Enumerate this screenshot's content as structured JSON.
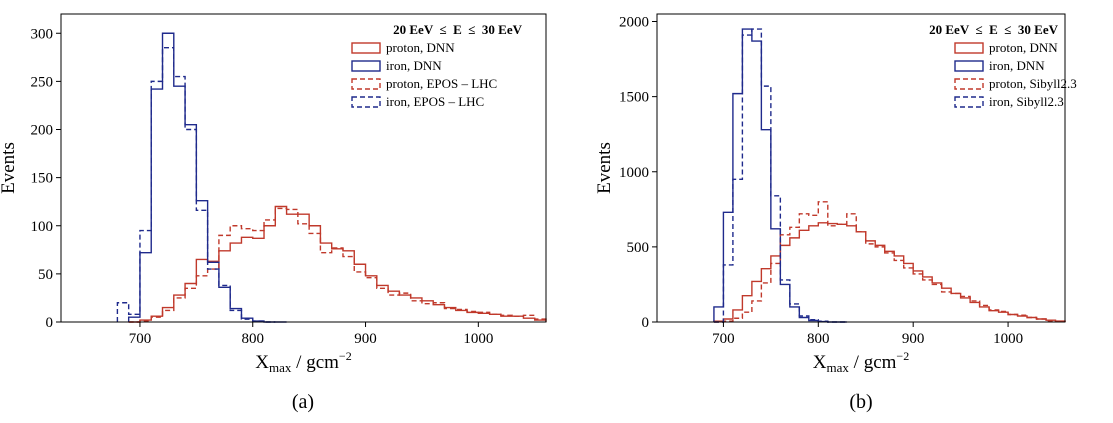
{
  "chart_data": [
    {
      "type": "histogram",
      "panel": "(a)",
      "energy_label": "20 EeV  ≤  E  ≤  30 EeV",
      "xlabel": "X",
      "xlabel_sub": "max",
      "xlabel_unit": " / gcm",
      "xlabel_sup": "−2",
      "ylabel": "Events",
      "xlim": [
        630,
        1060
      ],
      "ylim": [
        0,
        320
      ],
      "xticks": [
        700,
        800,
        900,
        1000
      ],
      "yticks": [
        0,
        50,
        100,
        150,
        200,
        250,
        300
      ],
      "bin_width": 10,
      "series": [
        {
          "name": "proton, DNN",
          "color": "#c0392b",
          "dash": "solid",
          "bin_start": 690,
          "values": [
            0,
            2,
            6,
            15,
            28,
            40,
            65,
            63,
            74,
            82,
            88,
            87,
            100,
            120,
            112,
            112,
            100,
            82,
            76,
            74,
            60,
            48,
            38,
            32,
            28,
            25,
            22,
            18,
            15,
            12,
            10,
            9,
            8,
            6,
            6,
            4,
            2
          ]
        },
        {
          "name": "iron, DNN",
          "color": "#1f2a8c",
          "dash": "solid",
          "bin_start": 690,
          "values": [
            5,
            72,
            242,
            300,
            245,
            205,
            126,
            62,
            36,
            14,
            4,
            1,
            0,
            0
          ]
        },
        {
          "name": "proton, EPOS – LHC",
          "color": "#c0392b",
          "dash": "dashed",
          "bin_start": 690,
          "values": [
            0,
            1,
            5,
            12,
            25,
            35,
            48,
            55,
            90,
            100,
            97,
            95,
            106,
            118,
            117,
            102,
            92,
            72,
            77,
            68,
            52,
            46,
            35,
            28,
            30,
            22,
            19,
            20,
            14,
            13,
            11,
            10,
            8,
            7,
            6,
            7,
            3
          ]
        },
        {
          "name": "iron, EPOS – LHC",
          "color": "#1f2a8c",
          "dash": "dashed",
          "bin_start": 680,
          "values": [
            20,
            8,
            95,
            250,
            285,
            255,
            200,
            116,
            55,
            38,
            12,
            3,
            1,
            0
          ]
        }
      ]
    },
    {
      "type": "histogram",
      "panel": "(b)",
      "energy_label": "20 EeV  ≤  E  ≤  30 EeV",
      "xlabel": "X",
      "xlabel_sub": "max",
      "xlabel_unit": " / gcm",
      "xlabel_sup": "−2",
      "ylabel": "Events",
      "xlim": [
        630,
        1060
      ],
      "ylim": [
        0,
        2050
      ],
      "xticks": [
        700,
        800,
        900,
        1000
      ],
      "yticks": [
        0,
        500,
        1000,
        1500,
        2000
      ],
      "bin_width": 10,
      "series": [
        {
          "name": "proton, DNN",
          "color": "#c0392b",
          "dash": "solid",
          "bin_start": 690,
          "values": [
            5,
            20,
            80,
            175,
            270,
            355,
            440,
            510,
            560,
            610,
            640,
            660,
            655,
            650,
            640,
            600,
            540,
            510,
            470,
            440,
            390,
            340,
            300,
            260,
            225,
            190,
            160,
            130,
            100,
            75,
            65,
            50,
            40,
            30,
            20,
            12,
            6
          ]
        },
        {
          "name": "iron, DNN",
          "color": "#1f2a8c",
          "dash": "solid",
          "bin_start": 690,
          "values": [
            100,
            730,
            1520,
            1950,
            1870,
            1280,
            620,
            250,
            100,
            30,
            10,
            3,
            0,
            0
          ]
        },
        {
          "name": "proton, Sibyll2.3",
          "color": "#c0392b",
          "dash": "dashed",
          "bin_start": 690,
          "values": [
            0,
            5,
            25,
            65,
            140,
            260,
            390,
            580,
            630,
            720,
            710,
            800,
            640,
            650,
            720,
            600,
            520,
            500,
            460,
            410,
            360,
            320,
            280,
            250,
            200,
            190,
            170,
            140,
            110,
            80,
            70,
            50,
            45,
            30,
            20,
            8,
            4
          ]
        },
        {
          "name": "iron, Sibyll2.3",
          "color": "#1f2a8c",
          "dash": "dashed",
          "bin_start": 690,
          "values": [
            0,
            380,
            950,
            1910,
            1950,
            1570,
            840,
            280,
            120,
            40,
            15,
            5,
            0,
            0
          ]
        }
      ]
    }
  ]
}
